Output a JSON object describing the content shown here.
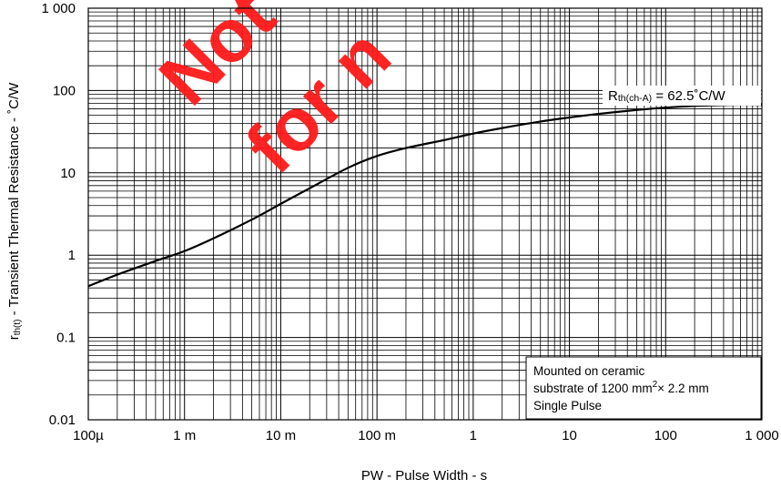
{
  "chart_data": {
    "type": "line",
    "xscale": "log",
    "yscale": "log",
    "xlim": [
      0.0001,
      1000
    ],
    "ylim": [
      0.01,
      1000
    ],
    "grid": true,
    "xlabel": "PW -  Pulse Width -  s",
    "ylabel_main": "r",
    "ylabel_sub": "th(t)",
    "ylabel_rest": " -  Transient Thermal Resistance -  ˚C/W",
    "x_tick_labels": [
      {
        "value": 0.0001,
        "label": "100µ"
      },
      {
        "value": 0.001,
        "label": "1 m"
      },
      {
        "value": 0.01,
        "label": "10 m"
      },
      {
        "value": 0.1,
        "label": "100 m"
      },
      {
        "value": 1,
        "label": "1"
      },
      {
        "value": 10,
        "label": "10"
      },
      {
        "value": 100,
        "label": "100"
      },
      {
        "value": 1000,
        "label": "1 000"
      }
    ],
    "y_tick_labels": [
      {
        "value": 0.01,
        "label": "0.01"
      },
      {
        "value": 0.1,
        "label": "0.1"
      },
      {
        "value": 1,
        "label": "1"
      },
      {
        "value": 10,
        "label": "10"
      },
      {
        "value": 100,
        "label": "100"
      },
      {
        "value": 1000,
        "label": "1 000"
      }
    ],
    "series": [
      {
        "color": "#000000",
        "x": [
          0.0001,
          0.0002,
          0.0005,
          0.001,
          0.002,
          0.005,
          0.01,
          0.02,
          0.05,
          0.1,
          0.2,
          0.5,
          1,
          2,
          5,
          10,
          20,
          50,
          100,
          200,
          500,
          1000
        ],
        "y": [
          0.42,
          0.58,
          0.85,
          1.12,
          1.6,
          2.7,
          4.2,
          6.5,
          11.5,
          16,
          20,
          25,
          30,
          35,
          42,
          47,
          52,
          58,
          62,
          65,
          67,
          67
        ]
      }
    ],
    "annotations": {
      "rth_label_main": "R",
      "rth_label_sub": "th(ch-A)",
      "rth_label_rest": " = 62.5˚C/W",
      "note_line1": "Mounted on ceramic",
      "note_line2_pre": "substrate of 1200 mm",
      "note_line2_sup": "2",
      "note_line2_post": "× 2.2 mm",
      "note_line3": "Single Pulse"
    },
    "watermark": {
      "line1": "Not",
      "line2": "for n",
      "color": "#ff1a1a"
    }
  }
}
